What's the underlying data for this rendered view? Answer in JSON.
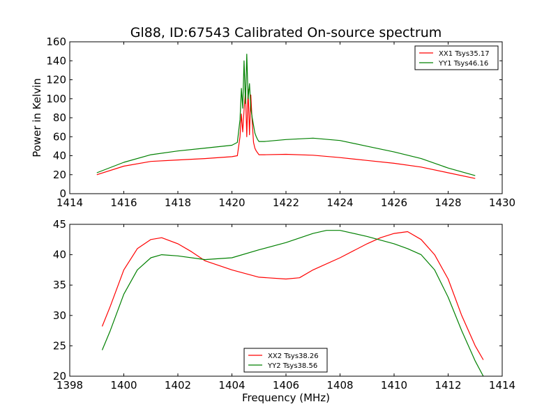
{
  "figure": {
    "title": "Gl88, ID:67543 Calibrated On-source spectrum"
  },
  "chart_data": [
    {
      "type": "line",
      "title": "Gl88, ID:67543 Calibrated On-source spectrum",
      "xlabel": "",
      "ylabel": "Power in Kelvin",
      "xlim": [
        1414,
        1430
      ],
      "ylim": [
        0,
        160
      ],
      "xticks": [
        "1414",
        "1416",
        "1418",
        "1420",
        "1422",
        "1424",
        "1426",
        "1428",
        "1430"
      ],
      "yticks": [
        "0",
        "20",
        "40",
        "60",
        "80",
        "100",
        "120",
        "140",
        "160"
      ],
      "grid": false,
      "legend_position": "top-right",
      "series": [
        {
          "name": "XX1 Tsys35.17",
          "color": "#ff0000",
          "x": [
            1415.0,
            1416.0,
            1417.0,
            1418.0,
            1419.0,
            1420.0,
            1420.2,
            1420.3,
            1420.35,
            1420.4,
            1420.45,
            1420.5,
            1420.55,
            1420.6,
            1420.65,
            1420.7,
            1420.75,
            1420.8,
            1420.85,
            1420.9,
            1420.95,
            1421.0,
            1421.2,
            1422.0,
            1423.0,
            1424.0,
            1425.0,
            1426.0,
            1427.0,
            1428.0,
            1429.0
          ],
          "y": [
            20,
            29,
            34,
            35.5,
            37,
            39,
            40,
            60,
            84,
            65,
            88,
            108,
            60,
            110,
            62,
            104,
            75,
            54,
            48,
            45,
            43,
            41,
            41,
            41.5,
            40.5,
            38,
            35,
            32,
            28,
            22,
            16
          ]
        },
        {
          "name": "YY1 Tsys46.16",
          "color": "#008000",
          "x": [
            1415.0,
            1416.0,
            1417.0,
            1418.0,
            1419.0,
            1420.0,
            1420.2,
            1420.3,
            1420.35,
            1420.4,
            1420.45,
            1420.5,
            1420.55,
            1420.6,
            1420.65,
            1420.7,
            1420.75,
            1420.8,
            1420.85,
            1420.9,
            1420.95,
            1421.0,
            1421.2,
            1422.0,
            1423.0,
            1424.0,
            1425.0,
            1426.0,
            1427.0,
            1428.0,
            1429.0
          ],
          "y": [
            22,
            33,
            41,
            45,
            48,
            51,
            54,
            78,
            111,
            90,
            140,
            95,
            147,
            100,
            116,
            90,
            80,
            72,
            64,
            60,
            57,
            55,
            55,
            57,
            58.5,
            56,
            50,
            44,
            37,
            27,
            19
          ]
        }
      ]
    },
    {
      "type": "line",
      "title": "",
      "xlabel": "Frequency (MHz)",
      "ylabel": "",
      "xlim": [
        1398,
        1414
      ],
      "ylim": [
        20,
        45
      ],
      "xticks": [
        "1398",
        "1400",
        "1402",
        "1404",
        "1406",
        "1408",
        "1410",
        "1412",
        "1414"
      ],
      "yticks": [
        "20",
        "25",
        "30",
        "35",
        "40",
        "45"
      ],
      "grid": false,
      "legend_position": "bottom-center",
      "series": [
        {
          "name": "XX2 Tsys38.26",
          "color": "#ff0000",
          "x": [
            1399.2,
            1399.5,
            1400.0,
            1400.5,
            1401.0,
            1401.4,
            1402.0,
            1402.5,
            1403.0,
            1404.0,
            1405.0,
            1406.0,
            1406.5,
            1407.0,
            1408.0,
            1409.0,
            1409.5,
            1410.0,
            1410.5,
            1411.0,
            1411.5,
            1412.0,
            1412.5,
            1413.0,
            1413.3
          ],
          "y": [
            28.2,
            31.5,
            37.5,
            41.0,
            42.5,
            42.8,
            41.8,
            40.5,
            39.0,
            37.5,
            36.3,
            36.0,
            36.2,
            37.5,
            39.5,
            41.8,
            42.8,
            43.5,
            43.8,
            42.5,
            40.0,
            36.0,
            30.0,
            25.0,
            22.7
          ]
        },
        {
          "name": "YY2 Tsys38.56",
          "color": "#008000",
          "x": [
            1399.2,
            1399.5,
            1400.0,
            1400.5,
            1401.0,
            1401.4,
            1402.0,
            1403.0,
            1404.0,
            1405.0,
            1406.0,
            1407.0,
            1407.5,
            1408.0,
            1409.0,
            1410.0,
            1410.5,
            1411.0,
            1411.5,
            1412.0,
            1412.5,
            1413.0,
            1413.3
          ],
          "y": [
            24.3,
            27.5,
            33.5,
            37.5,
            39.5,
            40.0,
            39.8,
            39.2,
            39.5,
            40.8,
            42.0,
            43.5,
            44.0,
            44.0,
            43.0,
            41.8,
            41.0,
            40.0,
            37.5,
            33.0,
            27.5,
            22.5,
            20.0
          ]
        }
      ]
    }
  ]
}
